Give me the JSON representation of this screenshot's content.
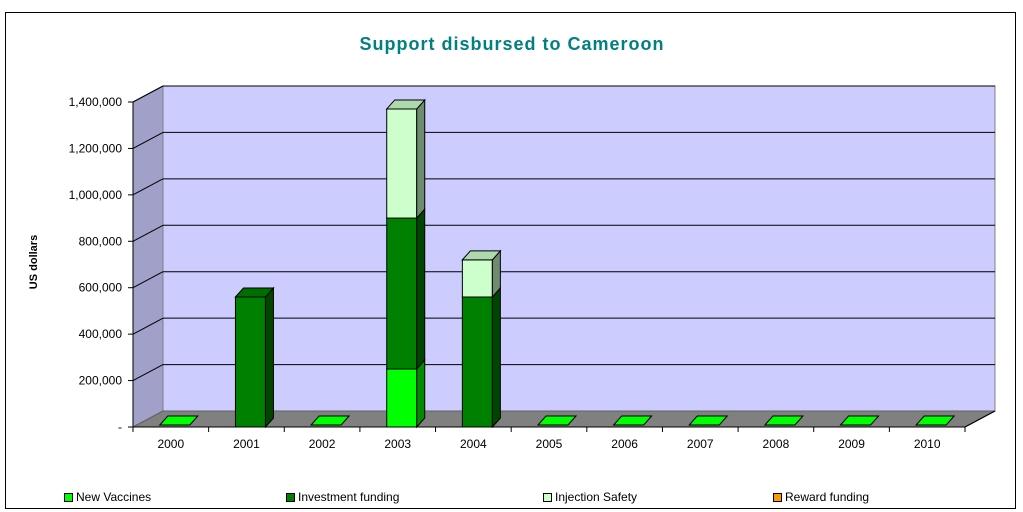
{
  "chart_data": {
    "type": "bar",
    "stacked": true,
    "three_d": true,
    "title": "Support disbursed to Cameroon",
    "xlabel": "",
    "ylabel": "US dollars",
    "ylim": [
      0,
      1400000
    ],
    "y_ticks": [
      0,
      200000,
      400000,
      600000,
      800000,
      1000000,
      1200000,
      1400000
    ],
    "y_tick_labels": [
      "-",
      "200,000",
      "400,000",
      "600,000",
      "800,000",
      "1,000,000",
      "1,200,000",
      "1,400,000"
    ],
    "categories": [
      "2000",
      "2001",
      "2002",
      "2003",
      "2004",
      "2005",
      "2006",
      "2007",
      "2008",
      "2009",
      "2010"
    ],
    "series": [
      {
        "name": "New Vaccines",
        "color": "#00ff00",
        "values": [
          0,
          0,
          0,
          250000,
          0,
          0,
          0,
          0,
          0,
          0,
          0
        ]
      },
      {
        "name": "Investment funding",
        "color": "#008000",
        "values": [
          0,
          560000,
          0,
          650000,
          560000,
          0,
          0,
          0,
          0,
          0,
          0
        ]
      },
      {
        "name": "Injection Safety",
        "color": "#ccffcc",
        "values": [
          0,
          0,
          0,
          470000,
          160000,
          0,
          0,
          0,
          0,
          0,
          0
        ]
      },
      {
        "name": "Reward funding",
        "color": "#ff9900",
        "values": [
          0,
          0,
          0,
          0,
          0,
          0,
          0,
          0,
          0,
          0,
          0
        ]
      }
    ],
    "grid": true,
    "plot_background": "#ccccff",
    "title_color": "#008080",
    "legend_position": "bottom"
  }
}
